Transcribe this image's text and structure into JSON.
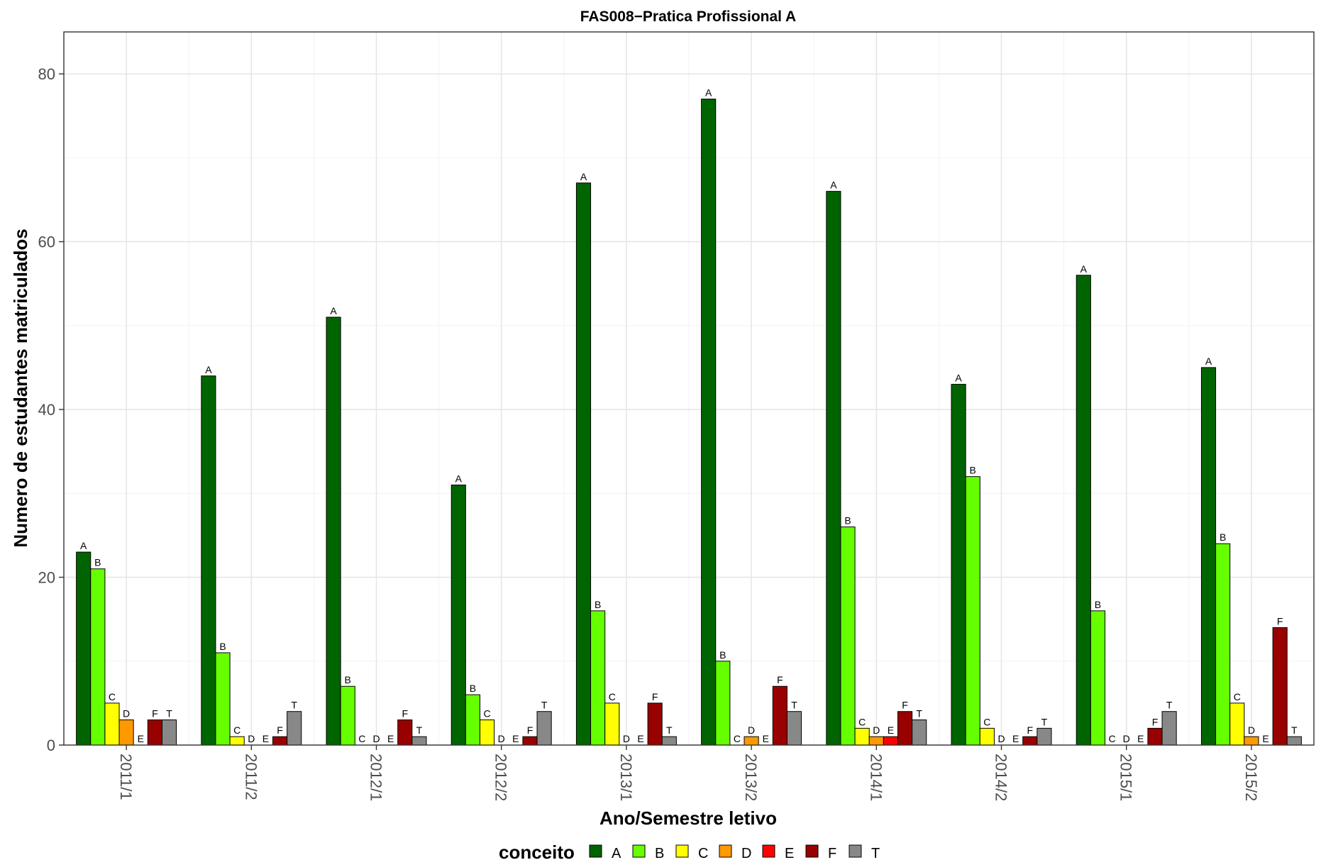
{
  "chart_data": {
    "type": "bar",
    "title": "FAS008−Pratica Profissional A",
    "xlabel": "Ano/Semestre letivo",
    "ylabel": "Numero de estudantes matriculados",
    "ylim": [
      0,
      85
    ],
    "yticks": [
      0,
      20,
      40,
      60,
      80
    ],
    "grid": true,
    "legend": {
      "title": "conceito",
      "position": "bottom"
    },
    "categories": [
      "2011/1",
      "2011/2",
      "2012/1",
      "2012/2",
      "2013/1",
      "2013/2",
      "2014/1",
      "2014/2",
      "2015/1",
      "2015/2"
    ],
    "series": [
      {
        "name": "A",
        "color": "#006400",
        "values": [
          23,
          44,
          51,
          31,
          67,
          77,
          66,
          43,
          56,
          45
        ]
      },
      {
        "name": "B",
        "color": "#66FF00",
        "values": [
          21,
          11,
          7,
          6,
          16,
          10,
          26,
          32,
          16,
          24
        ]
      },
      {
        "name": "C",
        "color": "#FFFF00",
        "values": [
          5,
          1,
          0,
          3,
          5,
          0,
          2,
          2,
          0,
          5
        ]
      },
      {
        "name": "D",
        "color": "#FF9900",
        "values": [
          3,
          0,
          0,
          0,
          0,
          1,
          1,
          0,
          0,
          1
        ]
      },
      {
        "name": "E",
        "color": "#FF0000",
        "values": [
          0,
          0,
          0,
          0,
          0,
          0,
          1,
          0,
          0,
          0
        ]
      },
      {
        "name": "F",
        "color": "#990000",
        "values": [
          3,
          1,
          3,
          1,
          5,
          7,
          4,
          1,
          2,
          14
        ]
      },
      {
        "name": "T",
        "color": "#888888",
        "values": [
          3,
          4,
          1,
          4,
          1,
          4,
          3,
          2,
          4,
          1
        ]
      }
    ]
  }
}
